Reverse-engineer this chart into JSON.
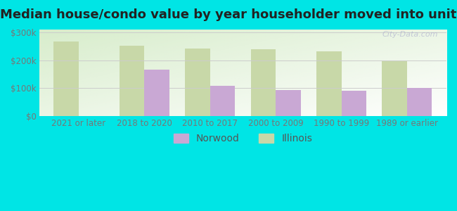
{
  "title": "Median house/condo value by year householder moved into unit",
  "categories": [
    "2021 or later",
    "2018 to 2020",
    "2010 to 2017",
    "2000 to 2009",
    "1990 to 1999",
    "1989 or earlier"
  ],
  "norwood_values": [
    null,
    165000,
    107000,
    93000,
    90000,
    101000
  ],
  "illinois_values": [
    268000,
    252000,
    242000,
    240000,
    232000,
    198000
  ],
  "norwood_color": "#c9a8d4",
  "illinois_color": "#c8d8a8",
  "background_color": "#00e5e5",
  "ylabel_ticks": [
    "$0",
    "$100k",
    "$200k",
    "$300k"
  ],
  "ytick_values": [
    0,
    100000,
    200000,
    300000
  ],
  "ylim": [
    0,
    310000
  ],
  "bar_width": 0.38,
  "watermark": "City-Data.com",
  "legend_labels": [
    "Norwood",
    "Illinois"
  ],
  "title_fontsize": 13,
  "tick_fontsize": 8.5,
  "legend_fontsize": 10
}
